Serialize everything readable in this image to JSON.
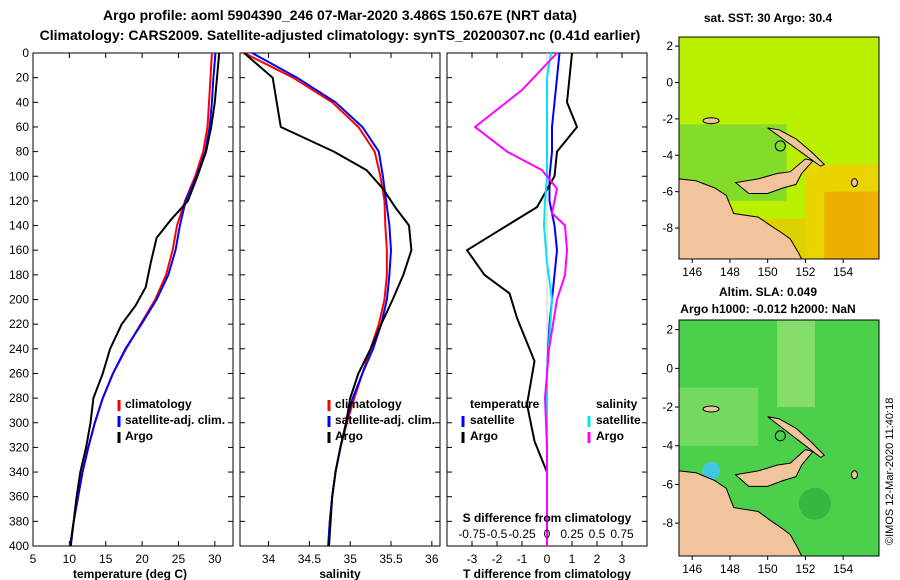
{
  "colors": {
    "climatology": "#ff0000",
    "satellite": "#0000ff",
    "argo": "#000000",
    "sat_salinity": "#00e5ee",
    "argo_salinity": "#ff00ff",
    "land": "#f2c49c",
    "sst_bg": "#b8f000",
    "sla_bg": "#4cd04c"
  },
  "title": {
    "line1": "Argo profile: aoml 5904390_246 07-Mar-2020 3.486S 150.67E (NRT data)",
    "line2": "Climatology: CARS2009. Satellite-adjusted climatology: synTS_20200307.nc (0.41d earlier)"
  },
  "chart_data": [
    {
      "type": "line",
      "name": "temperature",
      "xlabel": "temperature (deg C)",
      "xlim": [
        5,
        32.5
      ],
      "ylim": [
        0,
        400
      ],
      "xticks": [
        5,
        10,
        15,
        20,
        25,
        30
      ],
      "yticks": [
        0,
        20,
        40,
        60,
        80,
        100,
        120,
        140,
        160,
        180,
        200,
        220,
        240,
        260,
        280,
        300,
        320,
        340,
        360,
        380,
        400
      ],
      "legend": [
        "climatology",
        "satellite-adj. clim.",
        "Argo"
      ],
      "series": [
        {
          "name": "climatology",
          "color": "#ff0000",
          "points": [
            [
              29.6,
              0
            ],
            [
              29.4,
              20
            ],
            [
              29.2,
              40
            ],
            [
              29.0,
              60
            ],
            [
              28.4,
              80
            ],
            [
              27.3,
              100
            ],
            [
              25.9,
              120
            ],
            [
              24.8,
              140
            ],
            [
              24.2,
              160
            ],
            [
              23.3,
              180
            ],
            [
              21.8,
              200
            ],
            [
              19.8,
              220
            ],
            [
              17.8,
              240
            ],
            [
              16.0,
              260
            ],
            [
              14.6,
              280
            ],
            [
              13.5,
              300
            ],
            [
              12.6,
              320
            ],
            [
              11.8,
              340
            ],
            [
              11.2,
              360
            ],
            [
              10.6,
              380
            ],
            [
              10.1,
              400
            ]
          ]
        },
        {
          "name": "satellite-adj. clim.",
          "color": "#0000ff",
          "points": [
            [
              30.1,
              0
            ],
            [
              29.8,
              20
            ],
            [
              29.6,
              40
            ],
            [
              29.3,
              60
            ],
            [
              28.7,
              80
            ],
            [
              27.5,
              100
            ],
            [
              26.0,
              120
            ],
            [
              25.2,
              140
            ],
            [
              24.6,
              160
            ],
            [
              23.6,
              180
            ],
            [
              22.0,
              200
            ],
            [
              19.9,
              220
            ],
            [
              17.7,
              240
            ],
            [
              16.0,
              260
            ],
            [
              14.6,
              280
            ],
            [
              13.5,
              300
            ],
            [
              12.6,
              320
            ],
            [
              11.8,
              340
            ],
            [
              11.2,
              360
            ],
            [
              10.6,
              380
            ],
            [
              10.1,
              400
            ]
          ]
        },
        {
          "name": "Argo",
          "color": "#000000",
          "points": [
            [
              30.6,
              0
            ],
            [
              30.3,
              20
            ],
            [
              30.0,
              40
            ],
            [
              29.5,
              60
            ],
            [
              28.8,
              80
            ],
            [
              27.6,
              100
            ],
            [
              26.3,
              120
            ],
            [
              24.0,
              135
            ],
            [
              22.0,
              150
            ],
            [
              21.2,
              170
            ],
            [
              20.5,
              190
            ],
            [
              19.1,
              205
            ],
            [
              17.2,
              220
            ],
            [
              15.6,
              240
            ],
            [
              14.6,
              260
            ],
            [
              13.3,
              280
            ],
            [
              12.9,
              300
            ],
            [
              12.3,
              320
            ],
            [
              11.5,
              340
            ],
            [
              11.0,
              360
            ],
            [
              10.6,
              380
            ],
            [
              10.2,
              400
            ]
          ]
        }
      ]
    },
    {
      "type": "line",
      "name": "salinity",
      "xlabel": "salinity",
      "xlim": [
        33.65,
        36.1
      ],
      "ylim": [
        0,
        400
      ],
      "xticks": [
        34,
        34.5,
        35,
        35.5,
        36
      ],
      "legend": [
        "climatology",
        "satellite-adj. clim.",
        "Argo"
      ],
      "series": [
        {
          "name": "climatology",
          "color": "#ff0000",
          "points": [
            [
              33.7,
              0
            ],
            [
              34.3,
              20
            ],
            [
              34.78,
              40
            ],
            [
              35.1,
              60
            ],
            [
              35.3,
              80
            ],
            [
              35.37,
              100
            ],
            [
              35.42,
              120
            ],
            [
              35.43,
              140
            ],
            [
              35.45,
              160
            ],
            [
              35.45,
              180
            ],
            [
              35.42,
              200
            ],
            [
              35.35,
              220
            ],
            [
              35.25,
              240
            ],
            [
              35.15,
              260
            ],
            [
              35.05,
              280
            ],
            [
              34.96,
              300
            ],
            [
              34.88,
              320
            ],
            [
              34.82,
              340
            ],
            [
              34.78,
              360
            ],
            [
              34.75,
              380
            ],
            [
              34.73,
              400
            ]
          ]
        },
        {
          "name": "satellite-adj. clim.",
          "color": "#0000ff",
          "points": [
            [
              33.8,
              0
            ],
            [
              34.35,
              20
            ],
            [
              34.82,
              40
            ],
            [
              35.15,
              60
            ],
            [
              35.35,
              80
            ],
            [
              35.4,
              100
            ],
            [
              35.44,
              120
            ],
            [
              35.48,
              140
            ],
            [
              35.5,
              160
            ],
            [
              35.48,
              180
            ],
            [
              35.45,
              200
            ],
            [
              35.38,
              220
            ],
            [
              35.28,
              240
            ],
            [
              35.15,
              260
            ],
            [
              35.03,
              280
            ],
            [
              34.95,
              300
            ],
            [
              34.88,
              320
            ],
            [
              34.82,
              340
            ],
            [
              34.78,
              360
            ],
            [
              34.75,
              380
            ],
            [
              34.73,
              400
            ]
          ]
        },
        {
          "name": "Argo",
          "color": "#000000",
          "points": [
            [
              33.7,
              0
            ],
            [
              34.05,
              20
            ],
            [
              34.1,
              40
            ],
            [
              34.15,
              60
            ],
            [
              34.8,
              80
            ],
            [
              35.2,
              95
            ],
            [
              35.4,
              110
            ],
            [
              35.55,
              125
            ],
            [
              35.72,
              140
            ],
            [
              35.75,
              160
            ],
            [
              35.65,
              180
            ],
            [
              35.52,
              200
            ],
            [
              35.38,
              220
            ],
            [
              35.25,
              240
            ],
            [
              35.1,
              260
            ],
            [
              35.0,
              280
            ],
            [
              34.95,
              300
            ],
            [
              34.88,
              320
            ],
            [
              34.82,
              340
            ],
            [
              34.78,
              360
            ],
            [
              34.76,
              380
            ],
            [
              34.74,
              400
            ]
          ]
        }
      ]
    },
    {
      "type": "line",
      "name": "difference from climatology",
      "xlabel": "T difference from climatology",
      "s_axis_label": "S difference from climatology",
      "xlim": [
        -4,
        4
      ],
      "ylim": [
        0,
        400
      ],
      "xticks": [
        -3,
        -2,
        -1,
        0,
        1,
        2,
        3
      ],
      "s_ticks": [
        "-0.75",
        "-0.5",
        "-0.25",
        "0",
        "0.25",
        "0.5",
        "0.75"
      ],
      "legend_temperature": {
        "heading": "temperature",
        "items": [
          "satellite",
          "Argo"
        ]
      },
      "legend_salinity": {
        "heading": "salinity",
        "items": [
          "satellite",
          "Argo"
        ]
      },
      "series": [
        {
          "name": "T satellite",
          "color": "#0000ff",
          "points": [
            [
              0.5,
              0
            ],
            [
              0.4,
              20
            ],
            [
              0.3,
              40
            ],
            [
              0.2,
              60
            ],
            [
              0.2,
              80
            ],
            [
              0.1,
              100
            ],
            [
              0.1,
              120
            ],
            [
              0.3,
              140
            ],
            [
              0.4,
              160
            ],
            [
              0.3,
              180
            ],
            [
              0.2,
              200
            ],
            [
              0.1,
              220
            ],
            [
              0.0,
              260
            ],
            [
              0.0,
              300
            ],
            [
              0.0,
              340
            ],
            [
              0.0,
              400
            ]
          ]
        },
        {
          "name": "T Argo",
          "color": "#000000",
          "points": [
            [
              1.0,
              0
            ],
            [
              0.9,
              20
            ],
            [
              0.8,
              40
            ],
            [
              1.2,
              60
            ],
            [
              0.4,
              80
            ],
            [
              0.3,
              100
            ],
            [
              -0.4,
              125
            ],
            [
              -2.0,
              145
            ],
            [
              -3.2,
              160
            ],
            [
              -2.5,
              180
            ],
            [
              -1.5,
              195
            ],
            [
              -1.2,
              215
            ],
            [
              -0.5,
              250
            ],
            [
              -0.8,
              285
            ],
            [
              -0.5,
              315
            ],
            [
              0.0,
              340
            ],
            [
              0.0,
              400
            ]
          ]
        },
        {
          "name": "S satellite",
          "color": "#00e5ee",
          "points": [
            [
              0.04,
              0
            ],
            [
              0.0,
              20
            ],
            [
              0.0,
              60
            ],
            [
              0.0,
              100
            ],
            [
              -0.02,
              120
            ],
            [
              -0.03,
              140
            ],
            [
              0.0,
              170
            ],
            [
              0.05,
              200
            ],
            [
              0.0,
              260
            ],
            [
              0.0,
              320
            ],
            [
              0.0,
              400
            ]
          ]
        },
        {
          "name": "S Argo",
          "color": "#ff00ff",
          "points": [
            [
              0.1,
              0
            ],
            [
              -0.25,
              30
            ],
            [
              -0.72,
              60
            ],
            [
              -0.4,
              80
            ],
            [
              -0.05,
              95
            ],
            [
              0.1,
              110
            ],
            [
              0.05,
              130
            ],
            [
              0.18,
              140
            ],
            [
              0.2,
              160
            ],
            [
              0.18,
              180
            ],
            [
              0.1,
              200
            ],
            [
              0.02,
              240
            ],
            [
              -0.02,
              280
            ],
            [
              0.0,
              320
            ],
            [
              0.0,
              400
            ]
          ]
        }
      ]
    },
    {
      "type": "heatmap",
      "name": "sst map",
      "title": "sat. SST: 30 Argo: 30.4",
      "xlim": [
        145.3,
        155.9
      ],
      "ylim": [
        -9.7,
        2.5
      ],
      "xticks": [
        146,
        148,
        150,
        152,
        154
      ],
      "yticks": [
        2,
        0,
        -2,
        -4,
        -6,
        -8
      ],
      "argo_position": [
        150.67,
        -3.486
      ]
    },
    {
      "type": "heatmap",
      "name": "sla map",
      "title_line1": "Altim. SLA: 0.049",
      "title_line2": "Argo h1000: -0.012 h2000: NaN",
      "xlim": [
        145.3,
        155.9
      ],
      "ylim": [
        -9.7,
        2.5
      ],
      "xticks": [
        146,
        148,
        150,
        152,
        154
      ],
      "yticks": [
        2,
        0,
        -2,
        -4,
        -6,
        -8
      ],
      "argo_position": [
        150.67,
        -3.486
      ]
    }
  ],
  "credit": "©IMOS 12-Mar-2020 11:40:18"
}
